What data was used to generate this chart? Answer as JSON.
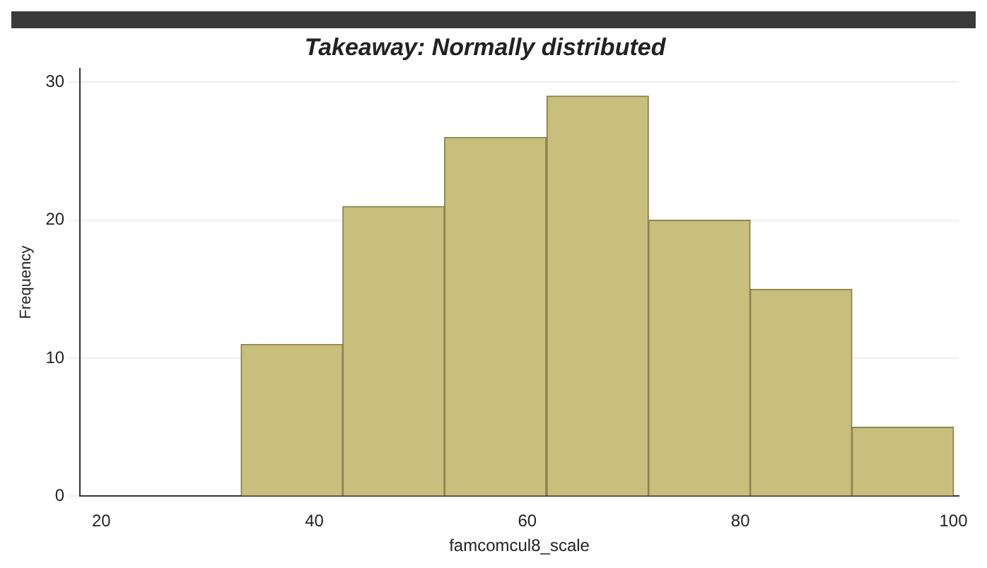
{
  "chart_data": {
    "type": "histogram",
    "title": "Takeaway: Normally distributed",
    "xlabel": "famcomcul8_scale",
    "ylabel": "Frequency",
    "bins": [
      33.1,
      42.7,
      52.2,
      61.8,
      71.4,
      80.9,
      90.5,
      100
    ],
    "values": [
      11,
      21,
      26,
      29,
      20,
      15,
      5
    ],
    "color": "#c9bf7c",
    "xlim": [
      18,
      100.5
    ],
    "xticks": [
      20,
      40,
      60,
      80,
      100
    ],
    "ylim": [
      0,
      31
    ],
    "yticks": [
      0,
      10,
      20,
      30
    ],
    "grid": "y",
    "legend": false
  }
}
